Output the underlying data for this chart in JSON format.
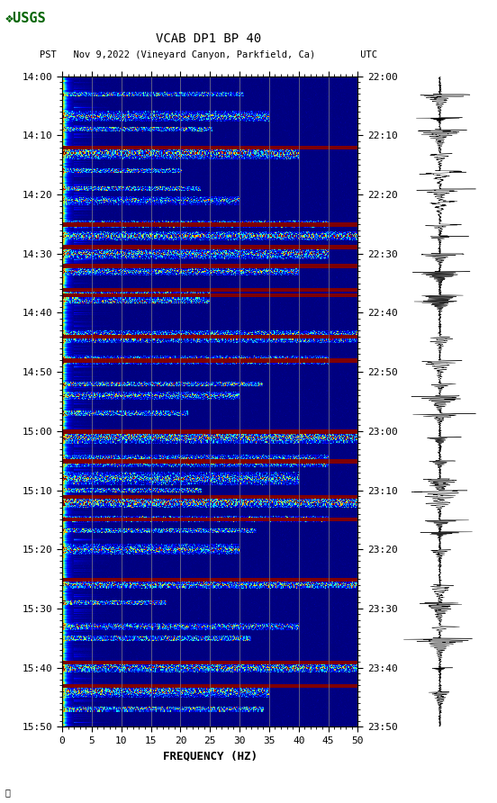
{
  "title_line1": "VCAB DP1 BP 40",
  "title_line2": "PST   Nov 9,2022 (Vineyard Canyon, Parkfield, Ca)        UTC",
  "xlabel": "FREQUENCY (HZ)",
  "freq_min": 0,
  "freq_max": 50,
  "pst_ticks": [
    "14:00",
    "14:10",
    "14:20",
    "14:30",
    "14:40",
    "14:50",
    "15:00",
    "15:10",
    "15:20",
    "15:30",
    "15:40",
    "15:50"
  ],
  "utc_ticks": [
    "22:00",
    "22:10",
    "22:20",
    "22:30",
    "22:40",
    "22:50",
    "23:00",
    "23:10",
    "23:20",
    "23:30",
    "23:40",
    "23:50"
  ],
  "freq_ticks": [
    0,
    5,
    10,
    15,
    20,
    25,
    30,
    35,
    40,
    45,
    50
  ],
  "grid_freqs": [
    5,
    10,
    15,
    20,
    25,
    30,
    35,
    40,
    45
  ],
  "background_color": "#ffffff",
  "title_fontsize": 10,
  "tick_fontsize": 8,
  "label_fontsize": 9,
  "n_time": 660,
  "n_freq": 500,
  "total_minutes": 110
}
